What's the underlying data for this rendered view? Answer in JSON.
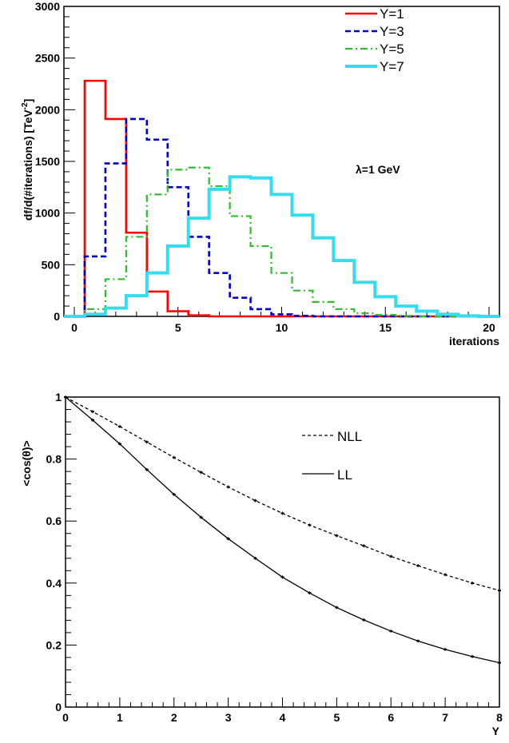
{
  "chart_data": [
    {
      "type": "histogram",
      "xlabel": "iterations",
      "ylabel": "df/d(#iterations) [TeV",
      "ylabel_sup": "-2",
      "ylabel_suffix": "]",
      "xlim": [
        -0.5,
        20.5
      ],
      "ylim": [
        0,
        3000
      ],
      "xticks": [
        0,
        5,
        10,
        15,
        20
      ],
      "yticks": [
        0,
        500,
        1000,
        1500,
        2000,
        2500,
        3000
      ],
      "legend_position": "top-right",
      "annotation": "λ=1 GeV",
      "series": [
        {
          "name": "Y=1",
          "color": "#ff0000",
          "style": "solid",
          "width": 2.6,
          "values": [
            0,
            2280,
            1910,
            810,
            240,
            50,
            10,
            0,
            0,
            0,
            0,
            0,
            0,
            0,
            0,
            0,
            0,
            0,
            0,
            0,
            0
          ]
        },
        {
          "name": "Y=3",
          "color": "#0000cc",
          "style": "dashed",
          "width": 2.6,
          "values": [
            0,
            580,
            1480,
            1910,
            1710,
            1250,
            770,
            420,
            180,
            70,
            20,
            5,
            0,
            0,
            0,
            0,
            0,
            0,
            0,
            0,
            0
          ]
        },
        {
          "name": "Y=5",
          "color": "#33bb33",
          "style": "dashdot",
          "width": 2.2,
          "values": [
            0,
            70,
            360,
            770,
            1180,
            1420,
            1440,
            1260,
            970,
            680,
            420,
            250,
            140,
            70,
            30,
            15,
            5,
            0,
            0,
            0,
            0
          ]
        },
        {
          "name": "Y=7",
          "color": "#33ddee",
          "style": "solid",
          "width": 4,
          "values": [
            0,
            20,
            80,
            200,
            420,
            680,
            950,
            1230,
            1350,
            1340,
            1180,
            980,
            760,
            540,
            330,
            190,
            100,
            50,
            20,
            5,
            0
          ]
        }
      ]
    },
    {
      "type": "line",
      "xlabel": "Y",
      "ylabel": "<cos(θ)>",
      "xlim": [
        0,
        8
      ],
      "ylim": [
        0,
        1
      ],
      "xticks": [
        0,
        1,
        2,
        3,
        4,
        5,
        6,
        7,
        8
      ],
      "yticks": [
        0,
        0.2,
        0.4,
        0.6,
        0.8,
        1
      ],
      "ytick_labels": [
        "0",
        "0.2",
        "0.4",
        "0.6",
        "0.8",
        "1"
      ],
      "legend_position": "top-right",
      "series": [
        {
          "name": "NLL",
          "style": "dashed",
          "x": [
            0,
            0.5,
            1,
            1.5,
            2,
            2.5,
            3,
            3.5,
            4,
            4.5,
            5,
            5.5,
            6,
            6.5,
            7,
            7.5,
            8
          ],
          "y": [
            1.0,
            0.953,
            0.905,
            0.855,
            0.805,
            0.757,
            0.71,
            0.666,
            0.625,
            0.587,
            0.553,
            0.52,
            0.486,
            0.456,
            0.427,
            0.4,
            0.376
          ]
        },
        {
          "name": "LL",
          "style": "solid",
          "x": [
            0,
            0.5,
            1,
            1.5,
            2,
            2.5,
            3,
            3.5,
            4,
            4.5,
            5,
            5.5,
            6,
            6.5,
            7,
            7.5,
            8
          ],
          "y": [
            1.0,
            0.926,
            0.849,
            0.766,
            0.686,
            0.612,
            0.543,
            0.48,
            0.419,
            0.368,
            0.321,
            0.281,
            0.245,
            0.213,
            0.186,
            0.163,
            0.143
          ]
        }
      ]
    }
  ]
}
